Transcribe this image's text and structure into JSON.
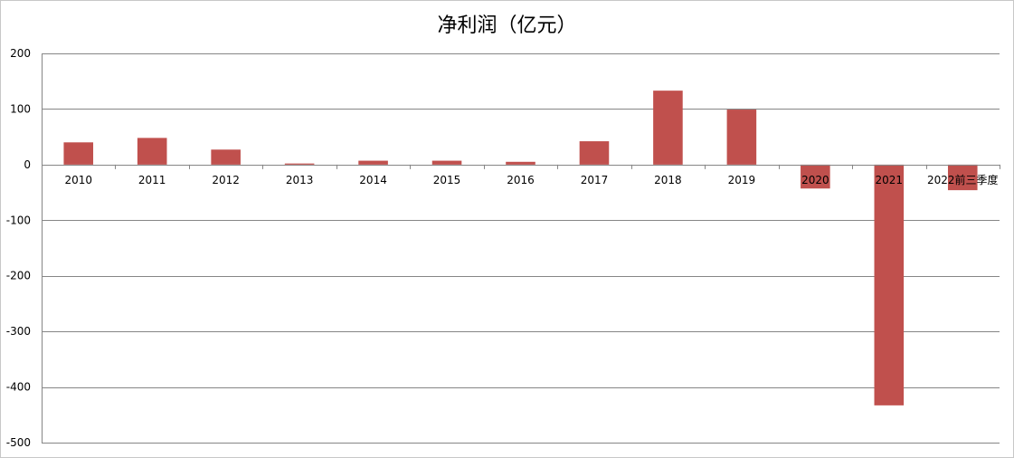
{
  "chart_data": {
    "type": "bar",
    "title": "净利润（亿元）",
    "xlabel": "",
    "ylabel": "",
    "categories": [
      "2010",
      "2011",
      "2012",
      "2013",
      "2014",
      "2015",
      "2016",
      "2017",
      "2018",
      "2019",
      "2020",
      "2021",
      "2022前三季度"
    ],
    "series": [
      {
        "values": [
          40,
          48,
          27,
          2,
          7,
          7,
          5,
          42,
          133,
          99,
          -43,
          -433,
          -46
        ]
      }
    ],
    "ylim": [
      -500,
      200
    ],
    "yticks": [
      200,
      100,
      0,
      -100,
      -200,
      -300,
      -400,
      -500
    ],
    "grid": true,
    "legend": "none",
    "bar_color": "#c0504d",
    "grid_color": "#868686"
  }
}
